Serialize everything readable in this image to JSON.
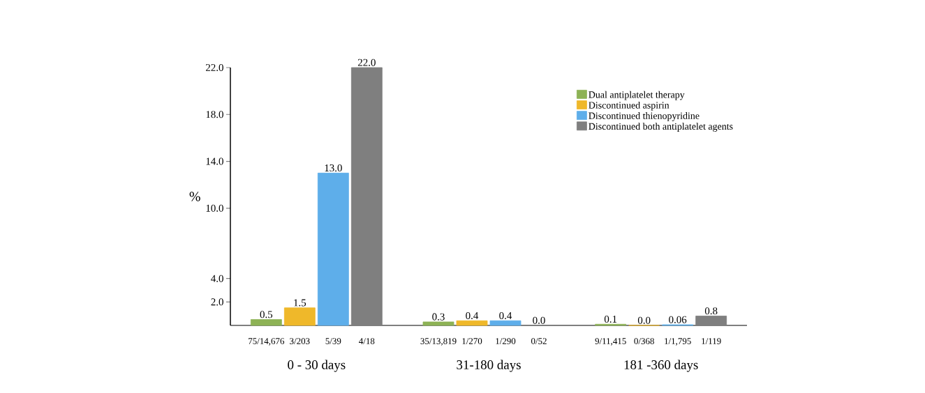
{
  "chart_data": {
    "type": "bar",
    "ylabel": "%",
    "categories": [
      "0 - 30 days",
      "31-180 days",
      "181 -360 days"
    ],
    "series": [
      {
        "name": "Dual antiplatelet therapy",
        "color": "#8db255",
        "values": [
          0.5,
          0.3,
          0.1
        ],
        "value_labels": [
          "0.5",
          "0.3",
          "0.1"
        ]
      },
      {
        "name": "Discontinued aspirin",
        "color": "#efb82a",
        "values": [
          1.5,
          0.4,
          0.0
        ],
        "value_labels": [
          "1.5",
          "0.4",
          "0.0"
        ]
      },
      {
        "name": "Discontinued thienopyridine",
        "color": "#5eaeea",
        "values": [
          13.0,
          0.4,
          0.06
        ],
        "value_labels": [
          "13.0",
          "0.4",
          "0.06"
        ]
      },
      {
        "name": "Discontinued both antiplatelet agents",
        "color": "#7f7f7f",
        "values": [
          22.0,
          0.0,
          0.8
        ],
        "value_labels": [
          "22.0",
          "0.0",
          "0.8"
        ]
      }
    ],
    "ylim": [
      0,
      22
    ],
    "yticks": [
      {
        "value": 2,
        "label": "2.0"
      },
      {
        "value": 4,
        "label": "4.0"
      },
      {
        "value": 10,
        "label": "10.0"
      },
      {
        "value": 14,
        "label": "14.0"
      },
      {
        "value": 18,
        "label": "18.0"
      },
      {
        "value": 22,
        "label": "22.0"
      }
    ],
    "legend": "top right",
    "annotations": [
      "75/14,676",
      "3/203",
      "5/39",
      "4/18",
      "35/13,819",
      "1/270",
      "1/290",
      "0/52",
      "9/11,415",
      "0/368",
      "1/1,795",
      "1/119"
    ]
  }
}
